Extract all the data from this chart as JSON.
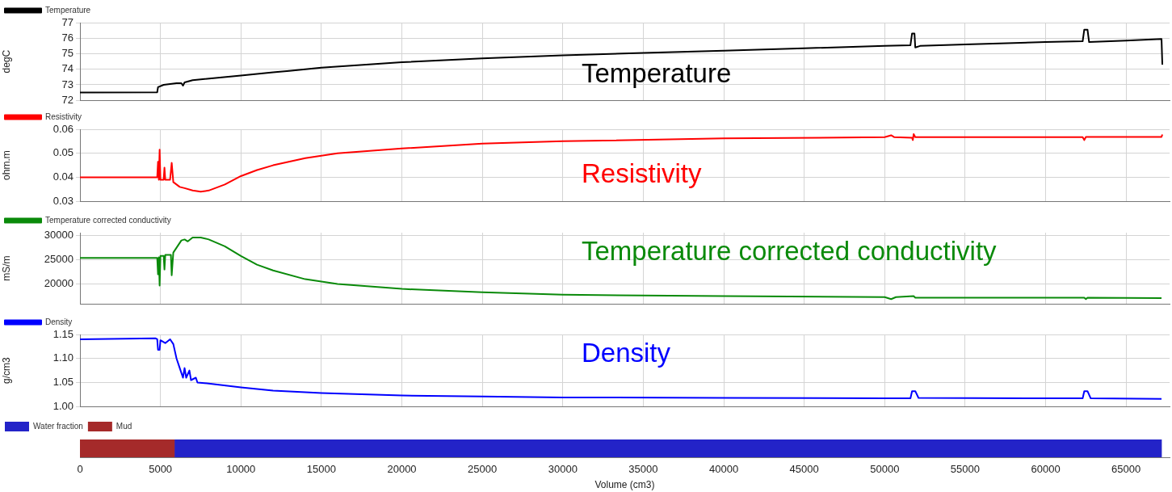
{
  "chart_data": [
    {
      "type": "line",
      "ylabel": "degC",
      "legend": "top left",
      "grid": true,
      "tick_labels": "y",
      "line_style": "solid",
      "marker": "none",
      "xlim": [
        0,
        67700
      ],
      "xticks": [
        0,
        5000,
        10000,
        15000,
        20000,
        25000,
        30000,
        35000,
        40000,
        45000,
        50000,
        55000,
        60000,
        65000
      ],
      "ylim": [
        72,
        77
      ],
      "yticks": [
        72,
        73,
        74,
        75,
        76,
        77
      ],
      "annotations": [
        "Temperature"
      ],
      "series": [
        {
          "name": "Temperature",
          "color": "#000000",
          "x": [
            0,
            4800,
            4850,
            5200,
            6000,
            6300,
            6400,
            6500,
            7000,
            10000,
            12000,
            13000,
            15000,
            20000,
            25000,
            30000,
            35000,
            40000,
            45000,
            50000,
            51600,
            51700,
            51850,
            51900,
            52200,
            55000,
            60000,
            62300,
            62400,
            62600,
            62700,
            65000,
            67200,
            67250
          ],
          "values": [
            72.5,
            72.52,
            72.85,
            73.0,
            73.1,
            73.1,
            72.95,
            73.15,
            73.3,
            73.6,
            73.8,
            73.9,
            74.1,
            74.45,
            74.7,
            74.9,
            75.05,
            75.2,
            75.35,
            75.5,
            75.55,
            76.3,
            76.3,
            75.4,
            75.5,
            75.6,
            75.75,
            75.8,
            76.55,
            76.55,
            75.75,
            75.85,
            75.95,
            74.3
          ]
        }
      ]
    },
    {
      "type": "line",
      "ylabel": "ohm.m",
      "legend": "top left",
      "grid": true,
      "tick_labels": "y",
      "line_style": "solid",
      "marker": "none",
      "xlim": [
        0,
        67700
      ],
      "xticks": [
        0,
        5000,
        10000,
        15000,
        20000,
        25000,
        30000,
        35000,
        40000,
        45000,
        50000,
        55000,
        60000,
        65000
      ],
      "ylim": [
        0.03,
        0.06
      ],
      "yticks": [
        0.03,
        0.04,
        0.05,
        0.06
      ],
      "annotations": [
        "Resistivity"
      ],
      "series": [
        {
          "name": "Resistivity",
          "color": "#ff0000",
          "x": [
            0,
            4800,
            4850,
            4900,
            4950,
            5000,
            5200,
            5250,
            5300,
            5600,
            5700,
            5800,
            6200,
            6500,
            7000,
            7500,
            8000,
            9000,
            10000,
            11000,
            12000,
            14000,
            16000,
            20000,
            25000,
            30000,
            40000,
            50000,
            50400,
            50600,
            51700,
            51750,
            51800,
            51900,
            62300,
            62400,
            62500,
            67200,
            67250
          ],
          "values": [
            0.04,
            0.04,
            0.0465,
            0.039,
            0.0515,
            0.039,
            0.039,
            0.044,
            0.039,
            0.039,
            0.046,
            0.038,
            0.036,
            0.0355,
            0.0345,
            0.034,
            0.0345,
            0.037,
            0.0405,
            0.043,
            0.045,
            0.048,
            0.05,
            0.052,
            0.054,
            0.055,
            0.0562,
            0.0567,
            0.0575,
            0.0567,
            0.0565,
            0.0555,
            0.058,
            0.0567,
            0.0567,
            0.0555,
            0.0568,
            0.0568,
            0.0578
          ]
        }
      ]
    },
    {
      "type": "line",
      "ylabel": "mS/m",
      "legend": "top left",
      "grid": true,
      "tick_labels": "y",
      "line_style": "solid",
      "marker": "none",
      "xlim": [
        0,
        67700
      ],
      "xticks": [
        0,
        5000,
        10000,
        15000,
        20000,
        25000,
        30000,
        35000,
        40000,
        45000,
        50000,
        55000,
        60000,
        65000
      ],
      "ylim": [
        15900,
        30600
      ],
      "yticks": [
        20000,
        25000,
        30000
      ],
      "annotations": [
        "Temperature corrected conductivity"
      ],
      "series": [
        {
          "name": "Temperature corrected conductivity",
          "color": "#0a8a0a",
          "x": [
            0,
            4800,
            4850,
            4900,
            4950,
            5000,
            5200,
            5250,
            5300,
            5650,
            5700,
            5800,
            6000,
            6300,
            6500,
            6700,
            7000,
            7500,
            8000,
            9000,
            10000,
            11000,
            12000,
            14000,
            16000,
            20000,
            25000,
            30000,
            40000,
            50000,
            50400,
            50700,
            51800,
            51900,
            62400,
            62500,
            62600,
            67200
          ],
          "values": [
            25400,
            25400,
            22000,
            25500,
            19700,
            25800,
            25800,
            23000,
            26000,
            26000,
            21800,
            26500,
            27500,
            29000,
            29200,
            28800,
            29600,
            29600,
            29200,
            27800,
            25800,
            24000,
            22800,
            21000,
            20000,
            19000,
            18300,
            17800,
            17500,
            17300,
            16900,
            17300,
            17500,
            17200,
            17200,
            16900,
            17200,
            17100
          ]
        }
      ]
    },
    {
      "type": "line",
      "ylabel": "g/cm3",
      "legend": "top left",
      "grid": true,
      "tick_labels": "y",
      "line_style": "solid",
      "marker": "none",
      "xlim": [
        0,
        67700
      ],
      "xticks": [
        0,
        5000,
        10000,
        15000,
        20000,
        25000,
        30000,
        35000,
        40000,
        45000,
        50000,
        55000,
        60000,
        65000
      ],
      "ylim": [
        1.0,
        1.15
      ],
      "yticks": [
        {
          "value": 1.0,
          "label": "1.00"
        },
        1.05,
        {
          "value": 1.1,
          "label": "1.10"
        },
        1.15
      ],
      "annotations": [
        "Density"
      ],
      "series": [
        {
          "name": "Density",
          "color": "#0000ff",
          "x": [
            0,
            4700,
            4800,
            4850,
            4950,
            5000,
            5300,
            5600,
            5800,
            6000,
            6200,
            6400,
            6500,
            6600,
            6800,
            6900,
            7200,
            7300,
            8000,
            10000,
            12000,
            15000,
            20000,
            25000,
            30000,
            40000,
            50000,
            51600,
            51700,
            51900,
            52100,
            62300,
            62400,
            62600,
            62800,
            67200
          ],
          "values": [
            1.14,
            1.142,
            1.14,
            1.118,
            1.118,
            1.138,
            1.132,
            1.14,
            1.13,
            1.1,
            1.08,
            1.06,
            1.08,
            1.06,
            1.075,
            1.055,
            1.06,
            1.05,
            1.048,
            1.04,
            1.033,
            1.028,
            1.023,
            1.021,
            1.019,
            1.018,
            1.017,
            1.017,
            1.032,
            1.032,
            1.018,
            1.017,
            1.032,
            1.032,
            1.017,
            1.016
          ]
        }
      ]
    },
    {
      "type": "bar",
      "orientation": "horizontal",
      "xlabel": "Volume (cm3)",
      "legend": "top left",
      "tick_labels": "x",
      "xlim": [
        0,
        67700
      ],
      "xticks": [
        0,
        5000,
        10000,
        15000,
        20000,
        25000,
        30000,
        35000,
        40000,
        45000,
        50000,
        55000,
        60000,
        65000
      ],
      "categories": [
        null
      ],
      "series": [
        {
          "name": "Water fraction",
          "color": "#2323c8",
          "base": [
            5900
          ],
          "values": [
            61300
          ]
        },
        {
          "name": "Mud",
          "color": "#a52a2a",
          "base": [
            0
          ],
          "values": [
            5900
          ]
        }
      ]
    }
  ]
}
